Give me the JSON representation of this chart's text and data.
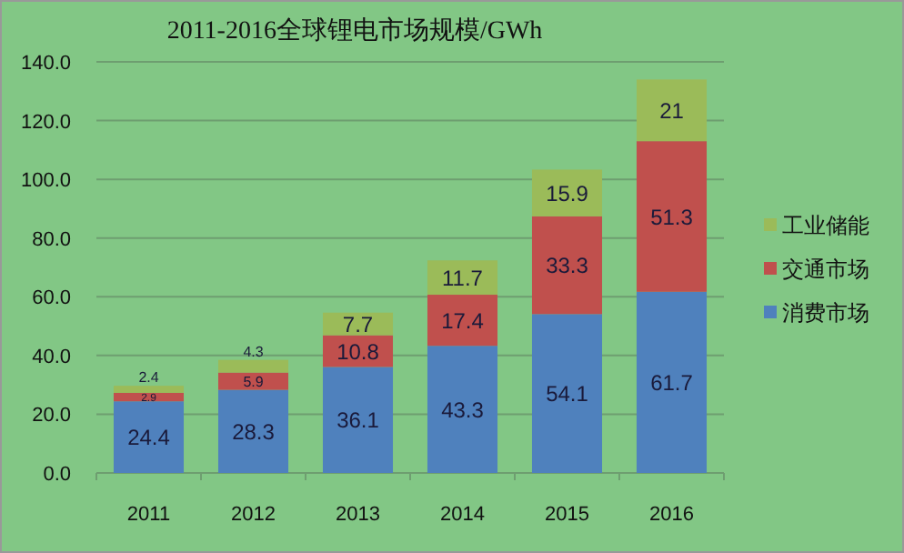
{
  "chart_data": {
    "type": "bar",
    "title": "2011-2016全球锂电市场规模/GWh",
    "categories": [
      "2011",
      "2012",
      "2013",
      "2014",
      "2015",
      "2016"
    ],
    "stacked": true,
    "series": [
      {
        "name": "消费市场",
        "color": "#4f81bd",
        "values": [
          24.4,
          28.3,
          36.1,
          43.3,
          54.1,
          61.7
        ]
      },
      {
        "name": "交通市场",
        "color": "#c0504d",
        "values": [
          2.9,
          5.9,
          10.8,
          17.4,
          33.3,
          51.3
        ]
      },
      {
        "name": "工业储能",
        "color": "#9bbb59",
        "values": [
          2.4,
          4.3,
          7.7,
          11.7,
          15.9,
          21
        ]
      }
    ],
    "ylim": [
      0,
      140
    ],
    "yticks": [
      {
        "value": 0,
        "label": "0.0"
      },
      {
        "value": 20,
        "label": "20.0"
      },
      {
        "value": 40,
        "label": "40.0"
      },
      {
        "value": 60,
        "label": "60.0"
      },
      {
        "value": 80,
        "label": "80.0"
      },
      {
        "value": 100,
        "label": "100.0"
      },
      {
        "value": 120,
        "label": "120.0"
      },
      {
        "value": 140,
        "label": "140.0"
      }
    ],
    "grid": "y",
    "legend": "right",
    "data_labels": true
  }
}
